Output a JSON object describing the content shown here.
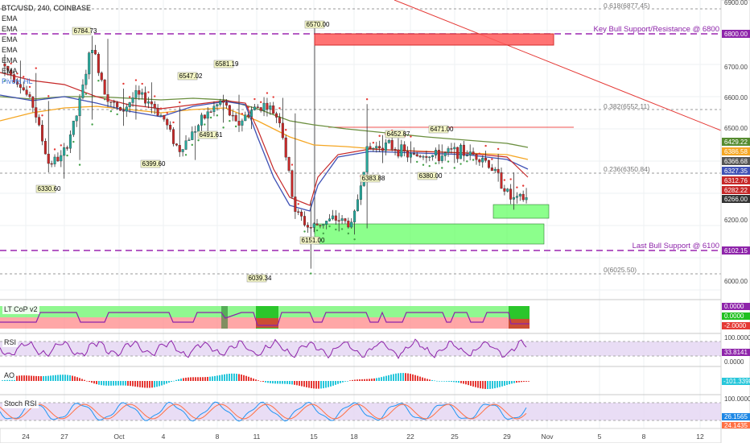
{
  "header": {
    "symbol_line": "BTC/USD, 240, COINBASE",
    "indicators": [
      "EMA",
      "EMA",
      "EMA",
      "EMA",
      "EMA",
      "EMA"
    ],
    "extra": "Pivots HL"
  },
  "colors": {
    "bull": "#26a69a",
    "bear": "#c62828",
    "wick": "#333333",
    "dashed_purple": "#9c27b0",
    "resistance_zone": "#f44336",
    "support_zone": "#66ff66",
    "trendline": "#e53935",
    "ema_dark_green": "#6b8f3f",
    "ema_orange": "#f5a623",
    "ema_blue": "#3f51b5",
    "ema_red": "#c62828",
    "psar_red": "#e53935",
    "psar_green": "#43a047"
  },
  "price_axis": {
    "ticks": [
      "6900.00",
      "6800.00",
      "6700.00",
      "6600.00",
      "6500.00",
      "6400.00",
      "6300.00",
      "6200.00",
      "6100.00",
      "6000.00"
    ],
    "badges": [
      {
        "text": "6800.00",
        "color": "#8e24aa"
      },
      {
        "text": "6429.22",
        "color": "#558b2f"
      },
      {
        "text": "6386.58",
        "color": "#f5a623"
      },
      {
        "text": "6366.68",
        "color": "#555555"
      },
      {
        "text": "6327.35",
        "color": "#3f51b5"
      },
      {
        "text": "6312.76",
        "color": "#c62828"
      },
      {
        "text": "6282.22",
        "color": "#c62828"
      },
      {
        "text": "6266.00",
        "color": "#333333"
      },
      {
        "text": "6102.15",
        "color": "#8e24aa"
      }
    ]
  },
  "annotations": {
    "fib": [
      "0.618(6877.45)",
      "0.382(6552.11)",
      "0.236(6350.84)",
      "0(6025.50)"
    ],
    "key_bull": "Key Bull Support/Resistance @ 6800",
    "last_bull": "Last Bull Support @ 6100",
    "price_labels": [
      "6784.73",
      "6570.00",
      "6581.19",
      "6547.02",
      "6491.61",
      "6399.60",
      "6330.60",
      "6452.87",
      "6471.00",
      "6383.88",
      "6380.00",
      "6151.00",
      "6039.34"
    ]
  },
  "panels": {
    "cop": {
      "label": "LT CoP v2",
      "values": [
        "0.0000",
        "0.0000",
        "-2.0000"
      ]
    },
    "rsi": {
      "label": "RSI",
      "values": [
        "100.0000",
        "33.8141",
        "0.0000"
      ]
    },
    "macd": {
      "label": "AO",
      "values": [
        "-101.3398"
      ]
    },
    "stoch": {
      "label": "Stoch RSI",
      "values": [
        "100.0000",
        "26.1565",
        "24.1435"
      ]
    }
  },
  "time_axis": [
    "24",
    "27",
    "Oct",
    "4",
    "8",
    "11",
    "15",
    "18",
    "22",
    "25",
    "29",
    "Nov",
    "5",
    "8",
    "12"
  ],
  "chart_data": {
    "type": "candlestick",
    "title": "BTC/USD, 240, COINBASE",
    "ylim": [
      5960,
      6930
    ],
    "levels": [
      6800,
      6100
    ],
    "fib_levels": [
      6877.45,
      6552.11,
      6350.84,
      6025.5
    ],
    "candles_ohlc_sample": [
      [
        6700,
        6730,
        6660,
        6690
      ],
      [
        6690,
        6710,
        6620,
        6640
      ],
      [
        6640,
        6670,
        6520,
        6560
      ],
      [
        6560,
        6580,
        6350,
        6380
      ],
      [
        6380,
        6420,
        6330,
        6400
      ],
      [
        6400,
        6560,
        6390,
        6540
      ],
      [
        6540,
        6790,
        6520,
        6760
      ],
      [
        6760,
        6780,
        6560,
        6600
      ],
      [
        6600,
        6620,
        6500,
        6540
      ],
      [
        6540,
        6620,
        6520,
        6600
      ],
      [
        6600,
        6640,
        6540,
        6580
      ],
      [
        6580,
        6600,
        6500,
        6520
      ],
      [
        6520,
        6560,
        6400,
        6420
      ],
      [
        6420,
        6500,
        6390,
        6480
      ],
      [
        6480,
        6560,
        6470,
        6540
      ],
      [
        6540,
        6600,
        6510,
        6580
      ],
      [
        6580,
        6600,
        6480,
        6500
      ],
      [
        6500,
        6560,
        6490,
        6550
      ],
      [
        6550,
        6590,
        6530,
        6570
      ],
      [
        6570,
        6590,
        6500,
        6520
      ],
      [
        6520,
        6540,
        6200,
        6230
      ],
      [
        6230,
        6260,
        6040,
        6170
      ],
      [
        6170,
        6210,
        6150,
        6190
      ],
      [
        6190,
        6220,
        6160,
        6200
      ],
      [
        6200,
        6230,
        6150,
        6180
      ],
      [
        6180,
        6570,
        6170,
        6420
      ],
      [
        6420,
        6470,
        6380,
        6440
      ],
      [
        6440,
        6460,
        6400,
        6430
      ],
      [
        6430,
        6450,
        6380,
        6400
      ],
      [
        6400,
        6420,
        6380,
        6410
      ],
      [
        6410,
        6440,
        6380,
        6400
      ],
      [
        6400,
        6430,
        6380,
        6420
      ],
      [
        6420,
        6440,
        6400,
        6410
      ],
      [
        6410,
        6420,
        6390,
        6400
      ],
      [
        6400,
        6410,
        6320,
        6340
      ],
      [
        6340,
        6350,
        6230,
        6260
      ],
      [
        6260,
        6300,
        6250,
        6266
      ]
    ]
  }
}
